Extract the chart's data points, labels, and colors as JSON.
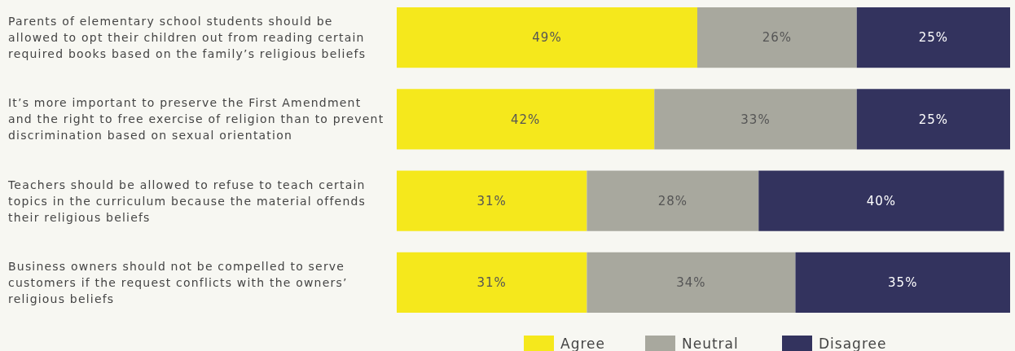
{
  "chart_data": {
    "type": "bar",
    "orientation": "horizontal",
    "stacked": true,
    "tick_labels": "y",
    "legend": "bottom",
    "categories": [
      "Parents of elementary school students should be allowed to opt their children out from reading certain required books based on the family’s religious beliefs",
      "It’s more important to preserve the First Amendment and the right to free exercise of religion than to prevent discrimination based on sexual orientation",
      "Teachers should be allowed to refuse to teach certain topics in the curriculum because the material offends their religious beliefs",
      "Business owners should not be compelled to serve customers if the request conflicts with the owners’ religious beliefs"
    ],
    "series": [
      {
        "name": "Agree",
        "color": "#f5e81c",
        "values": [
          49,
          42,
          31,
          31
        ],
        "value_labels": [
          "49%",
          "42%",
          "31%",
          "31%"
        ]
      },
      {
        "name": "Neutral",
        "color": "#a8a89e",
        "values": [
          26,
          33,
          28,
          34
        ],
        "value_labels": [
          "26%",
          "33%",
          "28%",
          "34%"
        ]
      },
      {
        "name": "Disagree",
        "color": "#33335e",
        "values": [
          25,
          25,
          40,
          35
        ],
        "value_labels": [
          "25%",
          "25%",
          "40%",
          "35%"
        ]
      }
    ]
  }
}
